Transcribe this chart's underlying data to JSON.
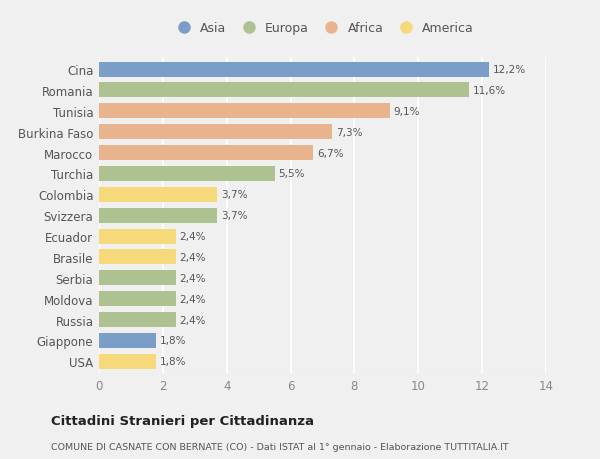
{
  "countries": [
    "Cina",
    "Romania",
    "Tunisia",
    "Burkina Faso",
    "Marocco",
    "Turchia",
    "Colombia",
    "Svizzera",
    "Ecuador",
    "Brasile",
    "Serbia",
    "Moldova",
    "Russia",
    "Giappone",
    "USA"
  ],
  "values": [
    12.2,
    11.6,
    9.1,
    7.3,
    6.7,
    5.5,
    3.7,
    3.7,
    2.4,
    2.4,
    2.4,
    2.4,
    2.4,
    1.8,
    1.8
  ],
  "labels": [
    "12,2%",
    "11,6%",
    "9,1%",
    "7,3%",
    "6,7%",
    "5,5%",
    "3,7%",
    "3,7%",
    "2,4%",
    "2,4%",
    "2,4%",
    "2,4%",
    "2,4%",
    "1,8%",
    "1,8%"
  ],
  "continents": [
    "Asia",
    "Europa",
    "Africa",
    "Africa",
    "Africa",
    "Europa",
    "America",
    "Europa",
    "America",
    "America",
    "Europa",
    "Europa",
    "Europa",
    "Asia",
    "America"
  ],
  "colors": {
    "Asia": "#7b9ec9",
    "Europa": "#adc191",
    "Africa": "#e8b48e",
    "America": "#f5d97a"
  },
  "xlim": [
    0,
    14
  ],
  "xticks": [
    0,
    2,
    4,
    6,
    8,
    10,
    12,
    14
  ],
  "background_color": "#f0f0f0",
  "grid_color": "#ffffff",
  "title": "Cittadini Stranieri per Cittadinanza",
  "subtitle": "COMUNE DI CASNATE CON BERNATE (CO) - Dati ISTAT al 1° gennaio - Elaborazione TUTTITALIA.IT",
  "bar_height": 0.72,
  "legend_order": [
    "Asia",
    "Europa",
    "Africa",
    "America"
  ]
}
